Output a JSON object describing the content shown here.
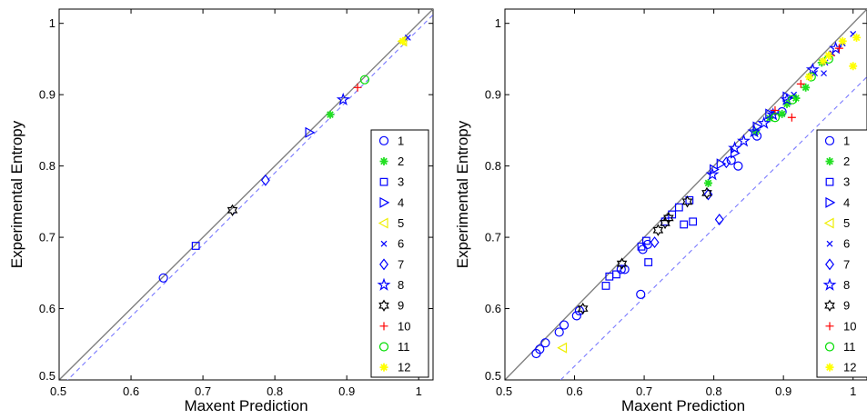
{
  "colors": {
    "1": "#0000ff",
    "2": "#22e022",
    "3": "#0000ff",
    "4": "#0000ff",
    "5": "#eeee00",
    "6": "#0000ff",
    "7": "#0000ff",
    "8": "#0000ff",
    "9": "#000000",
    "10": "#ff0000",
    "11": "#00dd00",
    "12": "#ffff00",
    "identity_line": "#808080",
    "dashed_line": "#7a7aff"
  },
  "markers": {
    "1": "circle",
    "2": "asterisk",
    "3": "square",
    "4": "triangle-right",
    "5": "triangle-left",
    "6": "x",
    "7": "diamond",
    "8": "pentagram",
    "9": "hexagram",
    "10": "plus",
    "11": "circle",
    "12": "asterisk"
  },
  "chart_data": [
    {
      "type": "scatter",
      "title": "",
      "xlabel": "Maxent Prediction",
      "ylabel": "Experimental Entropy",
      "xlim": [
        0.5,
        1.02
      ],
      "ylim": [
        0.5,
        1.02
      ],
      "xticks": [
        "0.5",
        "0.6",
        "0.7",
        "0.8",
        "0.9",
        "1"
      ],
      "yticks": [
        "0.5",
        "0.6",
        "0.7",
        "0.8",
        "0.9",
        "1"
      ],
      "grid": false,
      "legend_position": "right",
      "reference_lines": [
        {
          "style": "solid",
          "points": [
            [
              0.5,
              0.5
            ],
            [
              1.02,
              1.02
            ]
          ]
        },
        {
          "style": "dashed",
          "points": [
            [
              0.5,
              0.488
            ],
            [
              1.02,
              1.012
            ]
          ]
        }
      ],
      "series": [
        {
          "name": "1",
          "points": [
            [
              0.645,
              0.643
            ]
          ]
        },
        {
          "name": "2",
          "points": [
            [
              0.877,
              0.872
            ]
          ]
        },
        {
          "name": "3",
          "points": [
            [
              0.69,
              0.688
            ]
          ]
        },
        {
          "name": "4",
          "points": [
            [
              0.848,
              0.847
            ]
          ]
        },
        {
          "name": "5",
          "points": [
            [
              0.978,
              0.975
            ]
          ]
        },
        {
          "name": "6",
          "points": [
            [
              0.985,
              0.98
            ]
          ]
        },
        {
          "name": "7",
          "points": [
            [
              0.787,
              0.78
            ]
          ]
        },
        {
          "name": "8",
          "points": [
            [
              0.895,
              0.893
            ]
          ]
        },
        {
          "name": "9",
          "points": [
            [
              0.741,
              0.738
            ]
          ]
        },
        {
          "name": "10",
          "points": [
            [
              0.915,
              0.91
            ]
          ]
        },
        {
          "name": "11",
          "points": [
            [
              0.925,
              0.921
            ]
          ]
        },
        {
          "name": "12",
          "points": [
            [
              0.978,
              0.975
            ]
          ]
        }
      ]
    },
    {
      "type": "scatter",
      "title": "",
      "xlabel": "Maxent Prediction",
      "ylabel": "Experimental Entropy",
      "xlim": [
        0.5,
        1.02
      ],
      "ylim": [
        0.5,
        1.02
      ],
      "xticks": [
        "0.5",
        "0.6",
        "0.7",
        "0.8",
        "0.9",
        "1"
      ],
      "yticks": [
        "0.5",
        "0.6",
        "0.7",
        "0.8",
        "0.9",
        "1"
      ],
      "grid": false,
      "legend_position": "right",
      "reference_lines": [
        {
          "style": "solid",
          "points": [
            [
              0.5,
              0.5
            ],
            [
              1.02,
              1.02
            ]
          ]
        },
        {
          "style": "dashed",
          "points": [
            [
              0.58,
              0.5
            ],
            [
              1.02,
              0.925
            ]
          ]
        }
      ],
      "series": [
        {
          "name": "1",
          "points": [
            [
              0.545,
              0.537
            ],
            [
              0.55,
              0.543
            ],
            [
              0.558,
              0.552
            ],
            [
              0.578,
              0.567
            ],
            [
              0.585,
              0.577
            ],
            [
              0.603,
              0.59
            ],
            [
              0.607,
              0.597
            ],
            [
              0.667,
              0.655
            ],
            [
              0.672,
              0.655
            ],
            [
              0.695,
              0.62
            ],
            [
              0.698,
              0.683
            ],
            [
              0.705,
              0.69
            ],
            [
              0.825,
              0.808
            ],
            [
              0.835,
              0.8
            ],
            [
              0.862,
              0.842
            ],
            [
              0.898,
              0.876
            ]
          ]
        },
        {
          "name": "2",
          "points": [
            [
              0.792,
              0.776
            ],
            [
              0.86,
              0.848
            ],
            [
              0.88,
              0.867
            ],
            [
              0.898,
              0.873
            ],
            [
              0.905,
              0.887
            ],
            [
              0.918,
              0.895
            ],
            [
              0.932,
              0.91
            ],
            [
              0.955,
              0.945
            ]
          ]
        },
        {
          "name": "3",
          "points": [
            [
              0.645,
              0.632
            ],
            [
              0.65,
              0.645
            ],
            [
              0.66,
              0.648
            ],
            [
              0.696,
              0.687
            ],
            [
              0.703,
              0.695
            ],
            [
              0.706,
              0.665
            ],
            [
              0.73,
              0.722
            ],
            [
              0.74,
              0.732
            ],
            [
              0.75,
              0.742
            ],
            [
              0.757,
              0.718
            ],
            [
              0.765,
              0.752
            ],
            [
              0.77,
              0.722
            ]
          ]
        },
        {
          "name": "4",
          "points": [
            [
              0.8,
              0.795
            ],
            [
              0.81,
              0.803
            ],
            [
              0.83,
              0.818
            ],
            [
              0.862,
              0.855
            ],
            [
              0.88,
              0.873
            ],
            [
              0.905,
              0.897
            ]
          ]
        },
        {
          "name": "5",
          "points": [
            [
              0.583,
              0.545
            ]
          ]
        },
        {
          "name": "6",
          "points": [
            [
              0.885,
              0.875
            ],
            [
              0.915,
              0.9
            ],
            [
              0.945,
              0.93
            ],
            [
              0.96,
              0.945
            ],
            [
              0.97,
              0.958
            ],
            [
              0.985,
              0.972
            ],
            [
              1.0,
              0.985
            ],
            [
              0.958,
              0.93
            ]
          ]
        },
        {
          "name": "7",
          "points": [
            [
              0.715,
              0.693
            ],
            [
              0.792,
              0.76
            ],
            [
              0.808,
              0.725
            ],
            [
              0.818,
              0.805
            ]
          ]
        },
        {
          "name": "8",
          "points": [
            [
              0.798,
              0.788
            ],
            [
              0.83,
              0.825
            ],
            [
              0.843,
              0.835
            ],
            [
              0.858,
              0.848
            ],
            [
              0.872,
              0.86
            ],
            [
              0.885,
              0.872
            ],
            [
              0.905,
              0.893
            ],
            [
              0.942,
              0.935
            ],
            [
              0.975,
              0.965
            ]
          ]
        },
        {
          "name": "9",
          "points": [
            [
              0.612,
              0.6
            ],
            [
              0.668,
              0.663
            ],
            [
              0.72,
              0.71
            ],
            [
              0.73,
              0.72
            ],
            [
              0.735,
              0.727
            ],
            [
              0.762,
              0.75
            ],
            [
              0.79,
              0.762
            ]
          ]
        },
        {
          "name": "10",
          "points": [
            [
              0.888,
              0.878
            ],
            [
              0.912,
              0.868
            ],
            [
              0.925,
              0.915
            ],
            [
              0.968,
              0.955
            ],
            [
              0.98,
              0.965
            ]
          ]
        },
        {
          "name": "11",
          "points": [
            [
              0.888,
              0.868
            ],
            [
              0.913,
              0.893
            ],
            [
              0.94,
              0.925
            ],
            [
              0.965,
              0.95
            ]
          ]
        },
        {
          "name": "12",
          "points": [
            [
              0.937,
              0.925
            ],
            [
              0.957,
              0.947
            ],
            [
              0.965,
              0.955
            ],
            [
              0.985,
              0.975
            ],
            [
              1.0,
              0.94
            ],
            [
              1.005,
              0.98
            ]
          ]
        }
      ]
    }
  ]
}
